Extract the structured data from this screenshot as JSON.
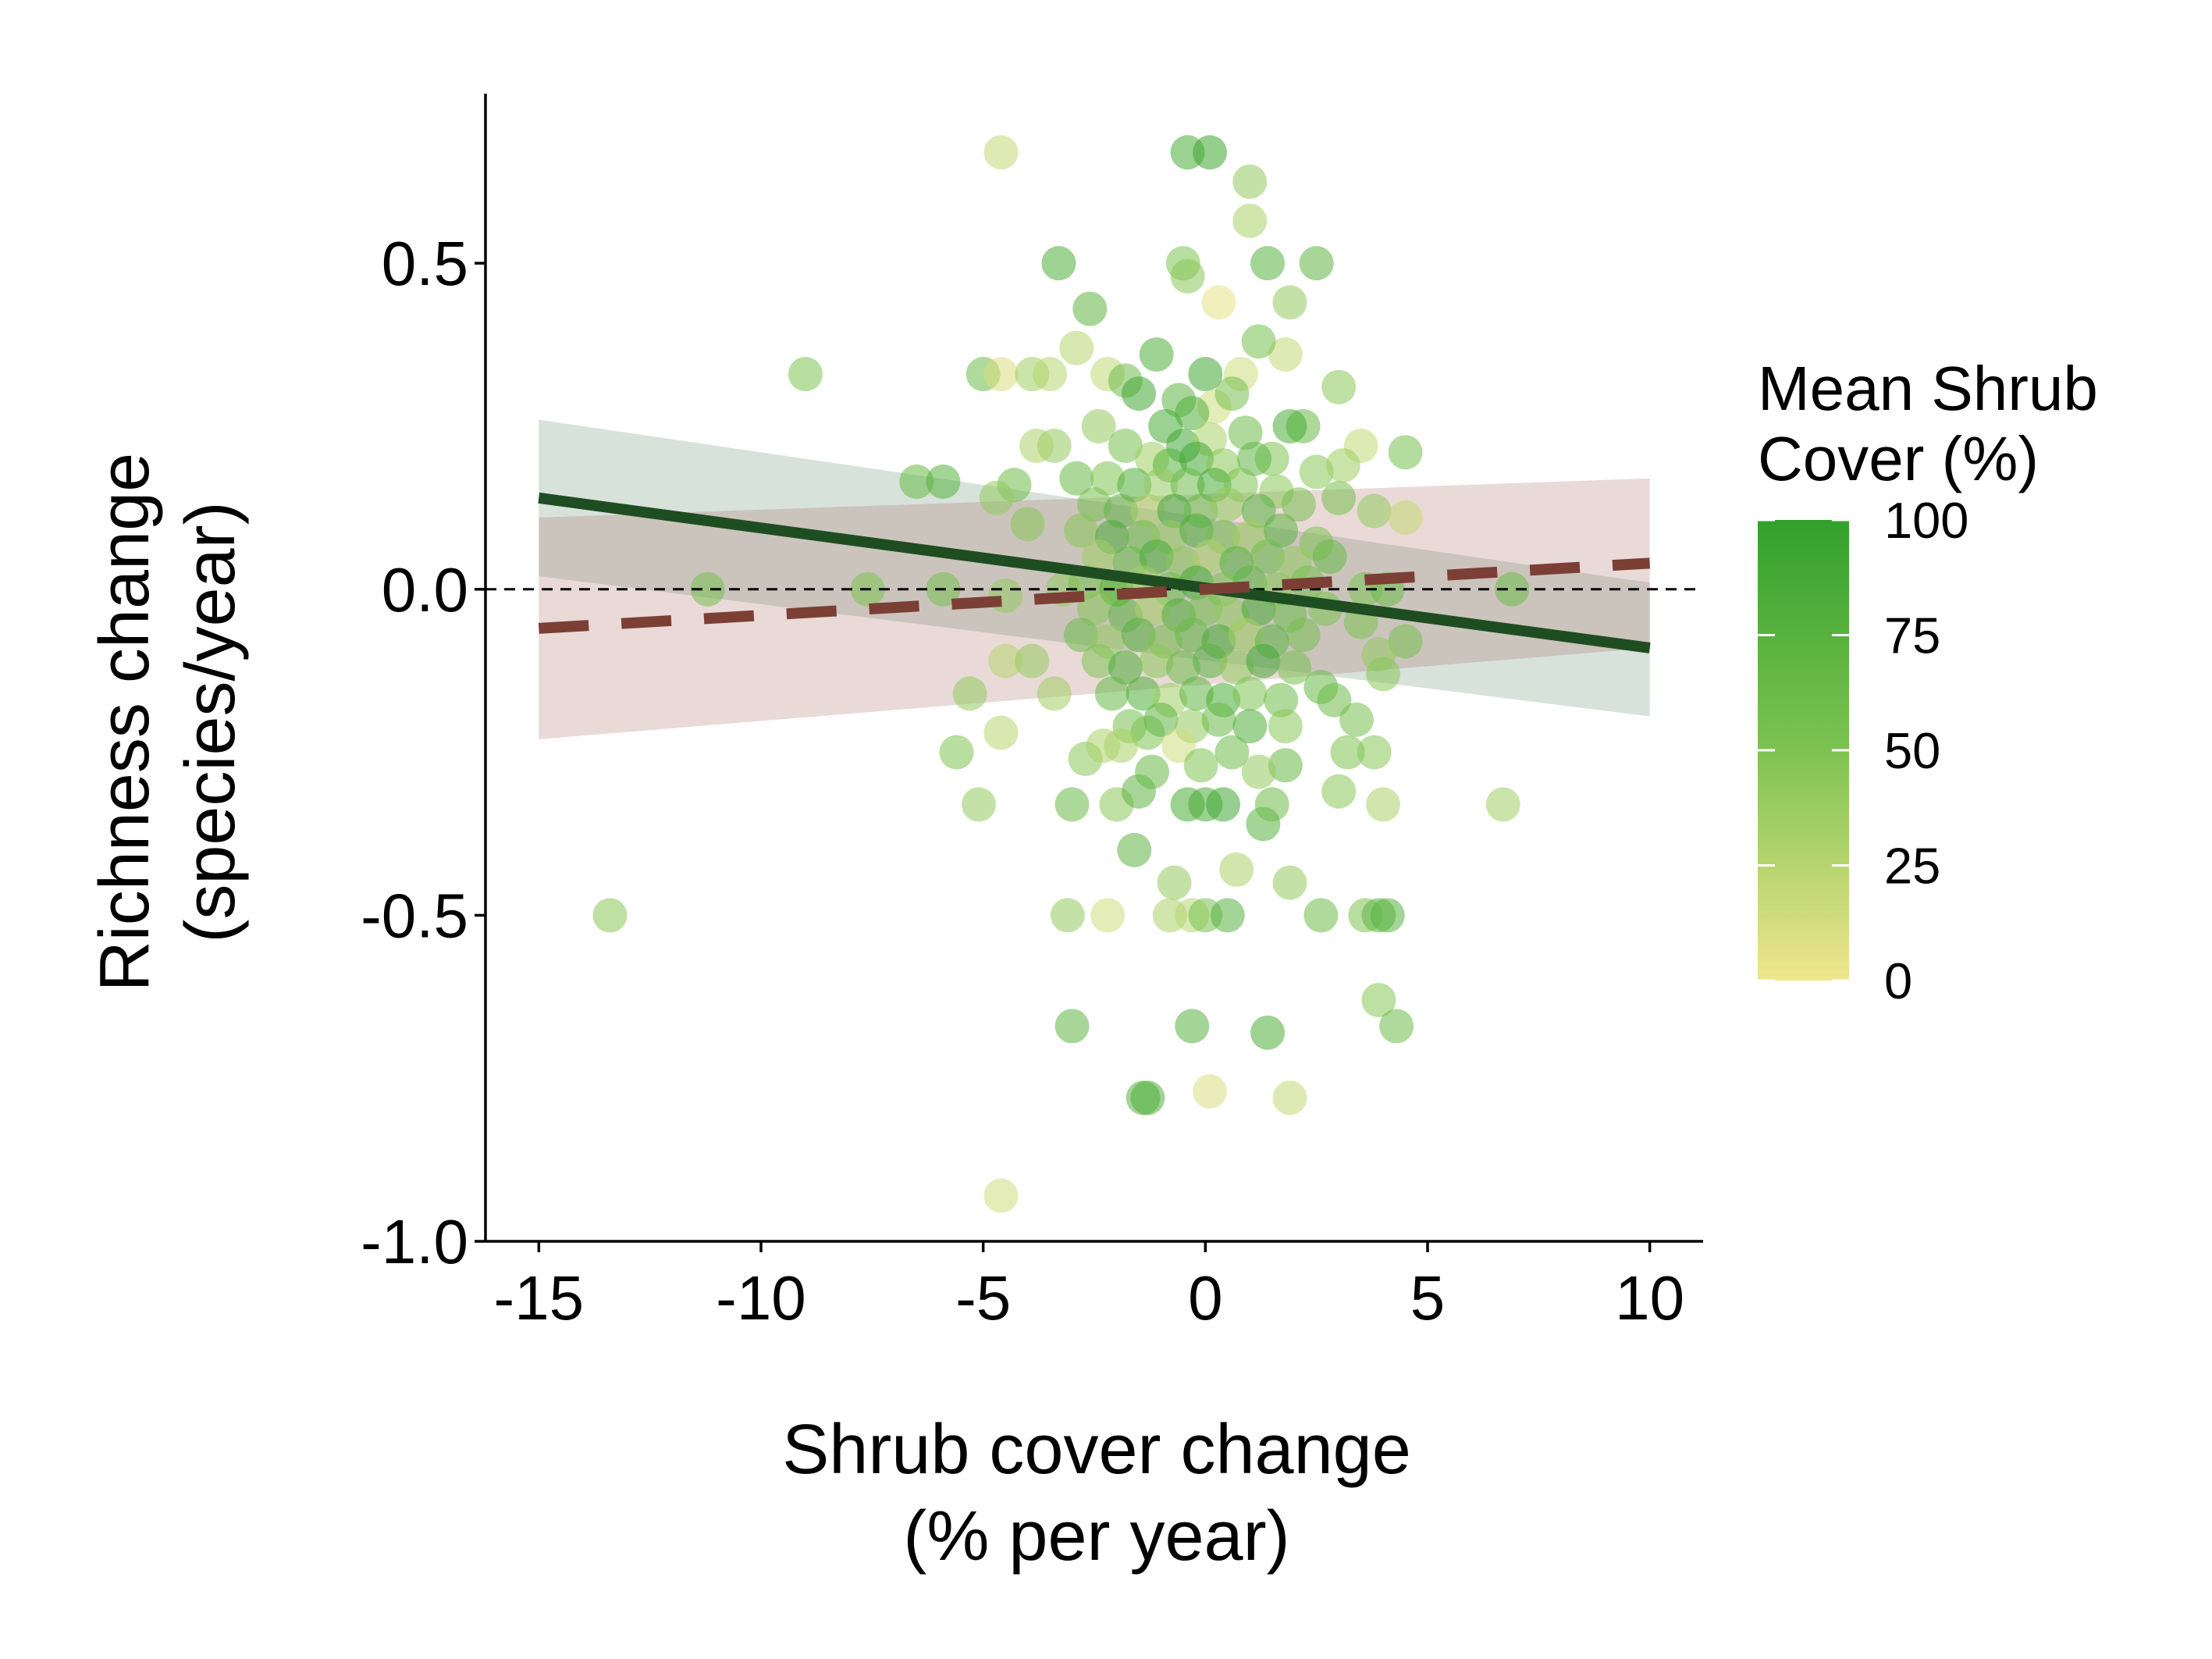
{
  "chart_data": {
    "type": "scatter",
    "xlabel_lines": [
      "Shrub cover change",
      "(% per year)"
    ],
    "ylabel_lines": [
      "Richness change",
      "(species/year)"
    ],
    "xlim": [
      -16.2,
      11.2
    ],
    "ylim": [
      -1.0,
      0.76
    ],
    "x_ticks": [
      -15,
      -10,
      -5,
      0,
      5,
      10
    ],
    "x_tick_labels": [
      "-15",
      "-10",
      "-5",
      "0",
      "5",
      "10"
    ],
    "y_ticks": [
      -1.0,
      -0.5,
      0.0,
      0.5
    ],
    "y_tick_labels": [
      "-1.0",
      "-0.5",
      "0.0",
      "0.5"
    ],
    "reference_line": {
      "y": 0,
      "style": "dashed",
      "color": "#000000"
    },
    "colorbar": {
      "title_lines": [
        "Mean Shrub",
        "Cover (%)"
      ],
      "range": [
        0,
        100
      ],
      "ticks": [
        0,
        25,
        50,
        75,
        100
      ],
      "tick_labels": [
        "0",
        "25",
        "50",
        "75",
        "100"
      ],
      "color_low": "#f0e68c",
      "color_mid": "#7dc352",
      "color_high": "#33a02c"
    },
    "fits": [
      {
        "style": "solid",
        "color": "#1e4d21",
        "band_color": "#5f8a6f",
        "x": [
          -15,
          10
        ],
        "y": [
          0.14,
          -0.09
        ],
        "lower": [
          0.02,
          -0.195
        ],
        "upper": [
          0.26,
          0.01
        ]
      },
      {
        "style": "dashed",
        "color": "#7b3f35",
        "band_color": "#a66a5e",
        "x": [
          -15,
          10
        ],
        "y": [
          -0.06,
          0.04
        ],
        "lower": [
          -0.23,
          -0.09
        ],
        "upper": [
          0.11,
          0.17
        ]
      }
    ],
    "points": [
      {
        "x": -4.6,
        "y": 0.67,
        "c": 20
      },
      {
        "x": -0.4,
        "y": 0.67,
        "c": 85
      },
      {
        "x": 0.1,
        "y": 0.67,
        "c": 92
      },
      {
        "x": 1.0,
        "y": 0.625,
        "c": 40
      },
      {
        "x": 1.0,
        "y": 0.565,
        "c": 30
      },
      {
        "x": -0.5,
        "y": 0.5,
        "c": 50
      },
      {
        "x": -3.3,
        "y": 0.5,
        "c": 80
      },
      {
        "x": 1.4,
        "y": 0.5,
        "c": 75
      },
      {
        "x": 2.5,
        "y": 0.5,
        "c": 70
      },
      {
        "x": -0.4,
        "y": 0.48,
        "c": 45
      },
      {
        "x": 0.3,
        "y": 0.44,
        "c": 5
      },
      {
        "x": 1.9,
        "y": 0.44,
        "c": 40
      },
      {
        "x": -2.6,
        "y": 0.43,
        "c": 70
      },
      {
        "x": -9.0,
        "y": 0.33,
        "c": 50
      },
      {
        "x": -5.0,
        "y": 0.33,
        "c": 60
      },
      {
        "x": -4.6,
        "y": 0.33,
        "c": 10
      },
      {
        "x": -3.9,
        "y": 0.33,
        "c": 35
      },
      {
        "x": -3.5,
        "y": 0.33,
        "c": 25
      },
      {
        "x": -2.2,
        "y": 0.33,
        "c": 20
      },
      {
        "x": -1.1,
        "y": 0.36,
        "c": 80
      },
      {
        "x": 0.0,
        "y": 0.33,
        "c": 90
      },
      {
        "x": 0.8,
        "y": 0.33,
        "c": 15
      },
      {
        "x": 1.8,
        "y": 0.36,
        "c": 20
      },
      {
        "x": 3.0,
        "y": 0.31,
        "c": 45
      },
      {
        "x": -2.9,
        "y": 0.37,
        "c": 25
      },
      {
        "x": -1.8,
        "y": 0.32,
        "c": 60
      },
      {
        "x": 1.2,
        "y": 0.38,
        "c": 55
      },
      {
        "x": -6.5,
        "y": 0.165,
        "c": 65
      },
      {
        "x": -5.9,
        "y": 0.165,
        "c": 75
      },
      {
        "x": -4.3,
        "y": 0.16,
        "c": 60
      },
      {
        "x": -4.7,
        "y": 0.14,
        "c": 40
      },
      {
        "x": -4.0,
        "y": 0.1,
        "c": 45
      },
      {
        "x": -3.4,
        "y": 0.22,
        "c": 40
      },
      {
        "x": -3.8,
        "y": 0.22,
        "c": 30
      },
      {
        "x": 3.5,
        "y": 0.22,
        "c": 20
      },
      {
        "x": 4.5,
        "y": 0.21,
        "c": 55
      },
      {
        "x": 3.8,
        "y": 0.12,
        "c": 40
      },
      {
        "x": 4.5,
        "y": 0.11,
        "c": 20
      },
      {
        "x": 3.0,
        "y": 0.14,
        "c": 55
      },
      {
        "x": 2.2,
        "y": 0.25,
        "c": 65
      },
      {
        "x": 1.9,
        "y": 0.25,
        "c": 85
      },
      {
        "x": 2.5,
        "y": 0.18,
        "c": 45
      },
      {
        "x": 1.5,
        "y": 0.2,
        "c": 50
      },
      {
        "x": 3.1,
        "y": 0.19,
        "c": 35
      },
      {
        "x": -11.2,
        "y": 0.0,
        "c": 55
      },
      {
        "x": -7.6,
        "y": 0.0,
        "c": 50
      },
      {
        "x": -5.9,
        "y": 0.0,
        "c": 55
      },
      {
        "x": -4.5,
        "y": -0.01,
        "c": 40
      },
      {
        "x": 6.9,
        "y": 0.0,
        "c": 60
      },
      {
        "x": -3.2,
        "y": 0.0,
        "c": 40
      },
      {
        "x": -2.0,
        "y": 0.0,
        "c": 35
      },
      {
        "x": 3.6,
        "y": 0.0,
        "c": 50
      },
      {
        "x": 4.1,
        "y": 0.0,
        "c": 60
      },
      {
        "x": 4.5,
        "y": -0.08,
        "c": 55
      },
      {
        "x": 3.9,
        "y": -0.1,
        "c": 40
      },
      {
        "x": 4.0,
        "y": -0.13,
        "c": 45
      },
      {
        "x": 3.5,
        "y": -0.05,
        "c": 50
      },
      {
        "x": -4.5,
        "y": -0.11,
        "c": 25
      },
      {
        "x": -3.9,
        "y": -0.11,
        "c": 40
      },
      {
        "x": -5.3,
        "y": -0.16,
        "c": 40
      },
      {
        "x": -4.6,
        "y": -0.22,
        "c": 25
      },
      {
        "x": -5.6,
        "y": -0.25,
        "c": 50
      },
      {
        "x": -5.1,
        "y": -0.33,
        "c": 40
      },
      {
        "x": -3.4,
        "y": -0.16,
        "c": 35
      },
      {
        "x": -2.7,
        "y": -0.26,
        "c": 45
      },
      {
        "x": -2.3,
        "y": -0.24,
        "c": 30
      },
      {
        "x": -3.0,
        "y": -0.33,
        "c": 65
      },
      {
        "x": -2.0,
        "y": -0.33,
        "c": 45
      },
      {
        "x": -1.5,
        "y": -0.31,
        "c": 70
      },
      {
        "x": -1.3,
        "y": -0.22,
        "c": 50
      },
      {
        "x": -1.6,
        "y": -0.4,
        "c": 70
      },
      {
        "x": -0.7,
        "y": -0.45,
        "c": 40
      },
      {
        "x": -0.4,
        "y": -0.33,
        "c": 85
      },
      {
        "x": 0.0,
        "y": -0.33,
        "c": 85
      },
      {
        "x": 0.4,
        "y": -0.33,
        "c": 90
      },
      {
        "x": 0.7,
        "y": -0.43,
        "c": 30
      },
      {
        "x": 1.3,
        "y": -0.36,
        "c": 75
      },
      {
        "x": 1.5,
        "y": -0.33,
        "c": 60
      },
      {
        "x": 1.8,
        "y": -0.27,
        "c": 65
      },
      {
        "x": 1.9,
        "y": -0.45,
        "c": 40
      },
      {
        "x": 2.6,
        "y": -0.15,
        "c": 65
      },
      {
        "x": 2.9,
        "y": -0.17,
        "c": 60
      },
      {
        "x": 3.0,
        "y": -0.31,
        "c": 45
      },
      {
        "x": 3.2,
        "y": -0.25,
        "c": 50
      },
      {
        "x": 3.4,
        "y": -0.2,
        "c": 55
      },
      {
        "x": 3.8,
        "y": -0.25,
        "c": 45
      },
      {
        "x": 4.0,
        "y": -0.33,
        "c": 30
      },
      {
        "x": 6.7,
        "y": -0.33,
        "c": 35
      },
      {
        "x": -13.4,
        "y": -0.5,
        "c": 45
      },
      {
        "x": -3.1,
        "y": -0.5,
        "c": 40
      },
      {
        "x": -2.2,
        "y": -0.5,
        "c": 15
      },
      {
        "x": -0.8,
        "y": -0.5,
        "c": 30
      },
      {
        "x": -0.3,
        "y": -0.5,
        "c": 25
      },
      {
        "x": 0.0,
        "y": -0.5,
        "c": 55
      },
      {
        "x": 0.5,
        "y": -0.5,
        "c": 75
      },
      {
        "x": 2.6,
        "y": -0.5,
        "c": 60
      },
      {
        "x": 3.6,
        "y": -0.5,
        "c": 50
      },
      {
        "x": 3.9,
        "y": -0.5,
        "c": 70
      },
      {
        "x": 4.1,
        "y": -0.5,
        "c": 75
      },
      {
        "x": -3.0,
        "y": -0.67,
        "c": 70
      },
      {
        "x": -0.3,
        "y": -0.67,
        "c": 75
      },
      {
        "x": 1.4,
        "y": -0.68,
        "c": 80
      },
      {
        "x": 3.9,
        "y": -0.63,
        "c": 45
      },
      {
        "x": 4.3,
        "y": -0.67,
        "c": 60
      },
      {
        "x": -1.4,
        "y": -0.78,
        "c": 75
      },
      {
        "x": -1.3,
        "y": -0.78,
        "c": 80
      },
      {
        "x": 0.1,
        "y": -0.77,
        "c": 10
      },
      {
        "x": 1.9,
        "y": -0.78,
        "c": 20
      },
      {
        "x": -4.6,
        "y": -0.93,
        "c": 15
      },
      {
        "x": -1.5,
        "y": 0.3,
        "c": 90
      },
      {
        "x": -0.6,
        "y": 0.29,
        "c": 70
      },
      {
        "x": 0.2,
        "y": 0.28,
        "c": 15
      },
      {
        "x": 0.6,
        "y": 0.3,
        "c": 55
      },
      {
        "x": -0.9,
        "y": 0.25,
        "c": 85
      },
      {
        "x": -0.3,
        "y": 0.27,
        "c": 80
      },
      {
        "x": -0.5,
        "y": 0.22,
        "c": 90
      },
      {
        "x": 0.1,
        "y": 0.23,
        "c": 30
      },
      {
        "x": 0.9,
        "y": 0.24,
        "c": 60
      },
      {
        "x": -2.4,
        "y": 0.25,
        "c": 40
      },
      {
        "x": -1.8,
        "y": 0.22,
        "c": 55
      },
      {
        "x": -1.2,
        "y": 0.2,
        "c": 35
      },
      {
        "x": -0.8,
        "y": 0.19,
        "c": 75
      },
      {
        "x": -0.2,
        "y": 0.2,
        "c": 90
      },
      {
        "x": 0.4,
        "y": 0.19,
        "c": 45
      },
      {
        "x": 1.1,
        "y": 0.2,
        "c": 70
      },
      {
        "x": -2.9,
        "y": 0.17,
        "c": 65
      },
      {
        "x": -2.2,
        "y": 0.17,
        "c": 50
      },
      {
        "x": -1.6,
        "y": 0.16,
        "c": 80
      },
      {
        "x": -1.0,
        "y": 0.16,
        "c": 40
      },
      {
        "x": -0.4,
        "y": 0.16,
        "c": 60
      },
      {
        "x": 0.2,
        "y": 0.16,
        "c": 85
      },
      {
        "x": 0.8,
        "y": 0.16,
        "c": 50
      },
      {
        "x": 1.6,
        "y": 0.15,
        "c": 45
      },
      {
        "x": -2.5,
        "y": 0.13,
        "c": 55
      },
      {
        "x": -1.9,
        "y": 0.12,
        "c": 70
      },
      {
        "x": -1.3,
        "y": 0.12,
        "c": 30
      },
      {
        "x": -0.7,
        "y": 0.12,
        "c": 90
      },
      {
        "x": -0.1,
        "y": 0.12,
        "c": 65
      },
      {
        "x": 0.5,
        "y": 0.13,
        "c": 40
      },
      {
        "x": 1.2,
        "y": 0.12,
        "c": 75
      },
      {
        "x": 2.1,
        "y": 0.13,
        "c": 55
      },
      {
        "x": -2.8,
        "y": 0.09,
        "c": 45
      },
      {
        "x": -2.1,
        "y": 0.08,
        "c": 85
      },
      {
        "x": -1.4,
        "y": 0.08,
        "c": 60
      },
      {
        "x": -0.8,
        "y": 0.08,
        "c": 40
      },
      {
        "x": -0.2,
        "y": 0.09,
        "c": 80
      },
      {
        "x": 0.4,
        "y": 0.08,
        "c": 55
      },
      {
        "x": 1.0,
        "y": 0.08,
        "c": 35
      },
      {
        "x": 1.7,
        "y": 0.09,
        "c": 70
      },
      {
        "x": 2.5,
        "y": 0.07,
        "c": 50
      },
      {
        "x": -2.4,
        "y": 0.05,
        "c": 35
      },
      {
        "x": -1.7,
        "y": 0.04,
        "c": 65
      },
      {
        "x": -1.1,
        "y": 0.05,
        "c": 85
      },
      {
        "x": -0.5,
        "y": 0.04,
        "c": 45
      },
      {
        "x": 0.1,
        "y": 0.05,
        "c": 30
      },
      {
        "x": 0.7,
        "y": 0.04,
        "c": 75
      },
      {
        "x": 1.4,
        "y": 0.05,
        "c": 60
      },
      {
        "x": 2.0,
        "y": 0.04,
        "c": 40
      },
      {
        "x": 2.8,
        "y": 0.05,
        "c": 65
      },
      {
        "x": -2.7,
        "y": 0.01,
        "c": 55
      },
      {
        "x": -2.0,
        "y": 0.0,
        "c": 80
      },
      {
        "x": -1.4,
        "y": 0.01,
        "c": 35
      },
      {
        "x": -0.8,
        "y": 0.0,
        "c": 60
      },
      {
        "x": -0.2,
        "y": 0.01,
        "c": 90
      },
      {
        "x": 0.4,
        "y": 0.0,
        "c": 50
      },
      {
        "x": 1.0,
        "y": 0.01,
        "c": 70
      },
      {
        "x": 1.6,
        "y": 0.0,
        "c": 45
      },
      {
        "x": 2.3,
        "y": 0.01,
        "c": 55
      },
      {
        "x": -2.5,
        "y": -0.03,
        "c": 45
      },
      {
        "x": -1.8,
        "y": -0.04,
        "c": 70
      },
      {
        "x": -1.2,
        "y": -0.03,
        "c": 30
      },
      {
        "x": -0.6,
        "y": -0.04,
        "c": 80
      },
      {
        "x": 0.0,
        "y": -0.03,
        "c": 55
      },
      {
        "x": 0.6,
        "y": -0.04,
        "c": 40
      },
      {
        "x": 1.2,
        "y": -0.03,
        "c": 85
      },
      {
        "x": 1.9,
        "y": -0.04,
        "c": 60
      },
      {
        "x": 2.7,
        "y": -0.03,
        "c": 50
      },
      {
        "x": -2.8,
        "y": -0.07,
        "c": 60
      },
      {
        "x": -2.2,
        "y": -0.08,
        "c": 40
      },
      {
        "x": -1.5,
        "y": -0.07,
        "c": 75
      },
      {
        "x": -0.9,
        "y": -0.08,
        "c": 50
      },
      {
        "x": -0.3,
        "y": -0.07,
        "c": 65
      },
      {
        "x": 0.3,
        "y": -0.08,
        "c": 85
      },
      {
        "x": 0.9,
        "y": -0.07,
        "c": 35
      },
      {
        "x": 1.5,
        "y": -0.08,
        "c": 70
      },
      {
        "x": 2.2,
        "y": -0.07,
        "c": 55
      },
      {
        "x": -2.4,
        "y": -0.11,
        "c": 50
      },
      {
        "x": -1.8,
        "y": -0.12,
        "c": 85
      },
      {
        "x": -1.1,
        "y": -0.11,
        "c": 45
      },
      {
        "x": -0.5,
        "y": -0.12,
        "c": 60
      },
      {
        "x": 0.1,
        "y": -0.11,
        "c": 75
      },
      {
        "x": 0.7,
        "y": -0.12,
        "c": 40
      },
      {
        "x": 1.3,
        "y": -0.11,
        "c": 90
      },
      {
        "x": 2.0,
        "y": -0.12,
        "c": 55
      },
      {
        "x": -2.1,
        "y": -0.16,
        "c": 65
      },
      {
        "x": -1.4,
        "y": -0.16,
        "c": 80
      },
      {
        "x": -0.8,
        "y": -0.17,
        "c": 35
      },
      {
        "x": -0.2,
        "y": -0.16,
        "c": 70
      },
      {
        "x": 0.4,
        "y": -0.17,
        "c": 85
      },
      {
        "x": 1.0,
        "y": -0.16,
        "c": 50
      },
      {
        "x": 1.7,
        "y": -0.17,
        "c": 60
      },
      {
        "x": -1.7,
        "y": -0.21,
        "c": 55
      },
      {
        "x": -1.0,
        "y": -0.2,
        "c": 70
      },
      {
        "x": -0.3,
        "y": -0.21,
        "c": 40
      },
      {
        "x": 0.3,
        "y": -0.2,
        "c": 65
      },
      {
        "x": 1.0,
        "y": -0.21,
        "c": 80
      },
      {
        "x": 1.8,
        "y": -0.21,
        "c": 45
      },
      {
        "x": -1.9,
        "y": -0.24,
        "c": 30
      },
      {
        "x": -0.6,
        "y": -0.24,
        "c": 15
      },
      {
        "x": 0.6,
        "y": -0.25,
        "c": 60
      },
      {
        "x": -0.1,
        "y": -0.27,
        "c": 50
      },
      {
        "x": 1.2,
        "y": -0.28,
        "c": 40
      },
      {
        "x": -1.2,
        "y": -0.28,
        "c": 65
      }
    ]
  }
}
